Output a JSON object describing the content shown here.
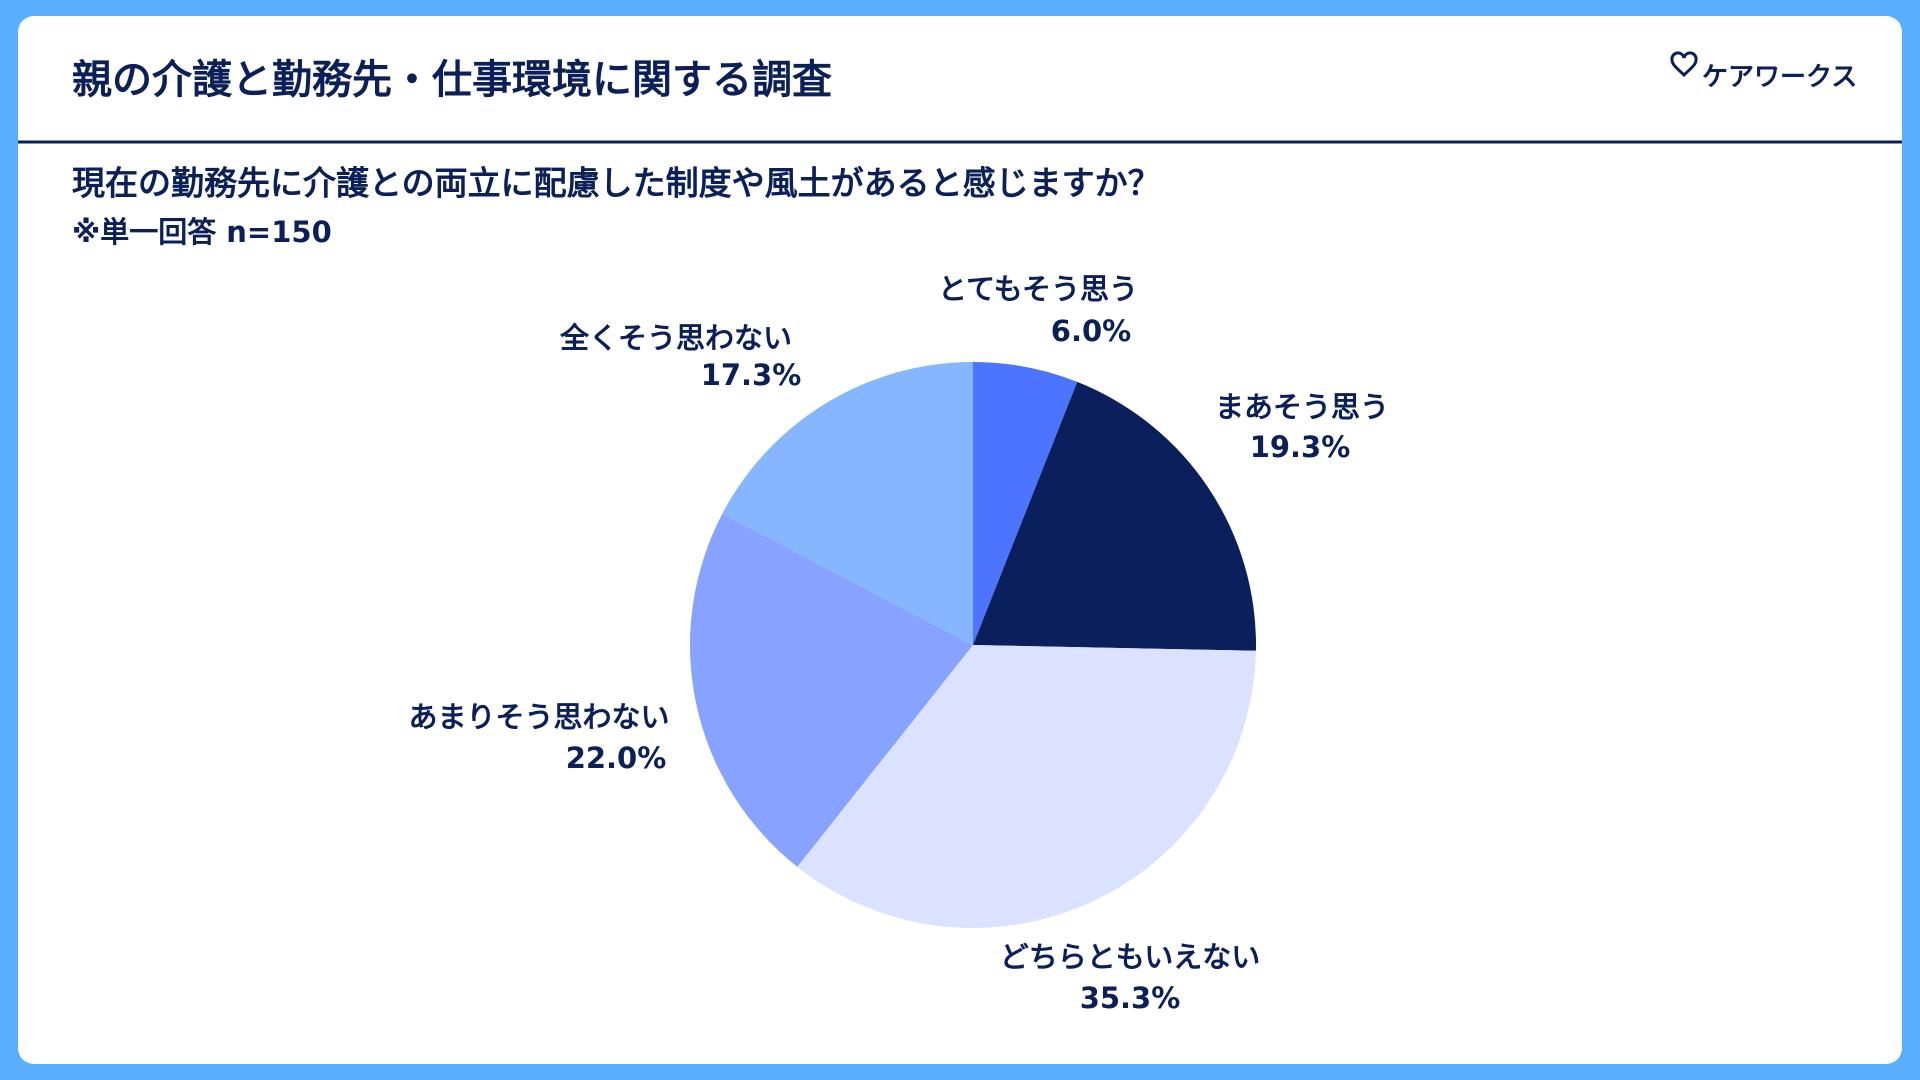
{
  "chart_data": {
    "type": "pie",
    "title": "親の介護と勤務先・仕事環境に関する調査",
    "brand": "ケアワークス",
    "subtitle": "現在の勤務先に介護との両立に配慮した制度や風土があると感じますか？",
    "note": "※単一回答 n=150",
    "categories": [
      "とてもそう思う",
      "まあそう思う",
      "どちらともいえない",
      "あまりそう思わない",
      "全くそう思わない"
    ],
    "values": [
      6.0,
      19.3,
      35.3,
      22.0,
      17.3
    ],
    "value_labels": [
      "6.0%",
      "19.3%",
      "35.3%",
      "22.0%",
      "17.3%"
    ],
    "colors": [
      "#4d74ff",
      "#0a1f5c",
      "#dbe2ff",
      "#88a3ff",
      "#86b6ff"
    ]
  }
}
